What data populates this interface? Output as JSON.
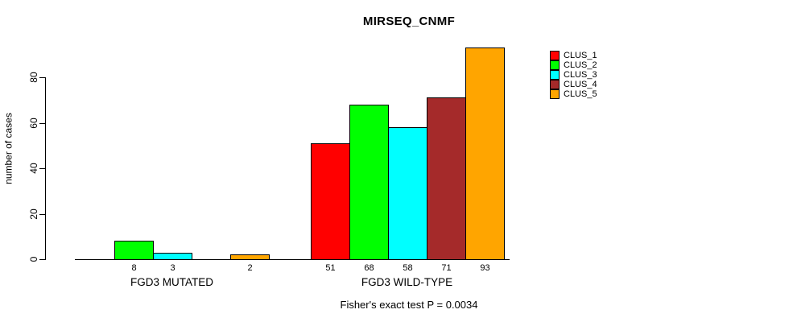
{
  "title": "MIRSEQ_CNMF",
  "y_axis_label": "number of cases",
  "footer": "Fisher's exact test P = 0.0034",
  "chart_data": {
    "type": "bar",
    "title": "MIRSEQ_CNMF",
    "ylabel": "number of cases",
    "ylim": [
      0,
      93
    ],
    "yticks": [
      0,
      20,
      40,
      60,
      80
    ],
    "grid": false,
    "legend_position": "right",
    "categories": [
      "FGD3 MUTATED",
      "FGD3 WILD-TYPE"
    ],
    "series": [
      {
        "name": "CLUS_1",
        "color": "#ff0000",
        "values": [
          0,
          51
        ]
      },
      {
        "name": "CLUS_2",
        "color": "#00ff00",
        "values": [
          8,
          68
        ]
      },
      {
        "name": "CLUS_3",
        "color": "#00ffff",
        "values": [
          3,
          58
        ]
      },
      {
        "name": "CLUS_4",
        "color": "#a52a2a",
        "values": [
          0,
          71
        ]
      },
      {
        "name": "CLUS_5",
        "color": "#ffa500",
        "values": [
          2,
          93
        ]
      }
    ],
    "bar_value_labels": [
      8,
      3,
      2,
      51,
      68,
      58,
      71,
      93
    ],
    "annotation": "Fisher's exact test P = 0.0034"
  }
}
